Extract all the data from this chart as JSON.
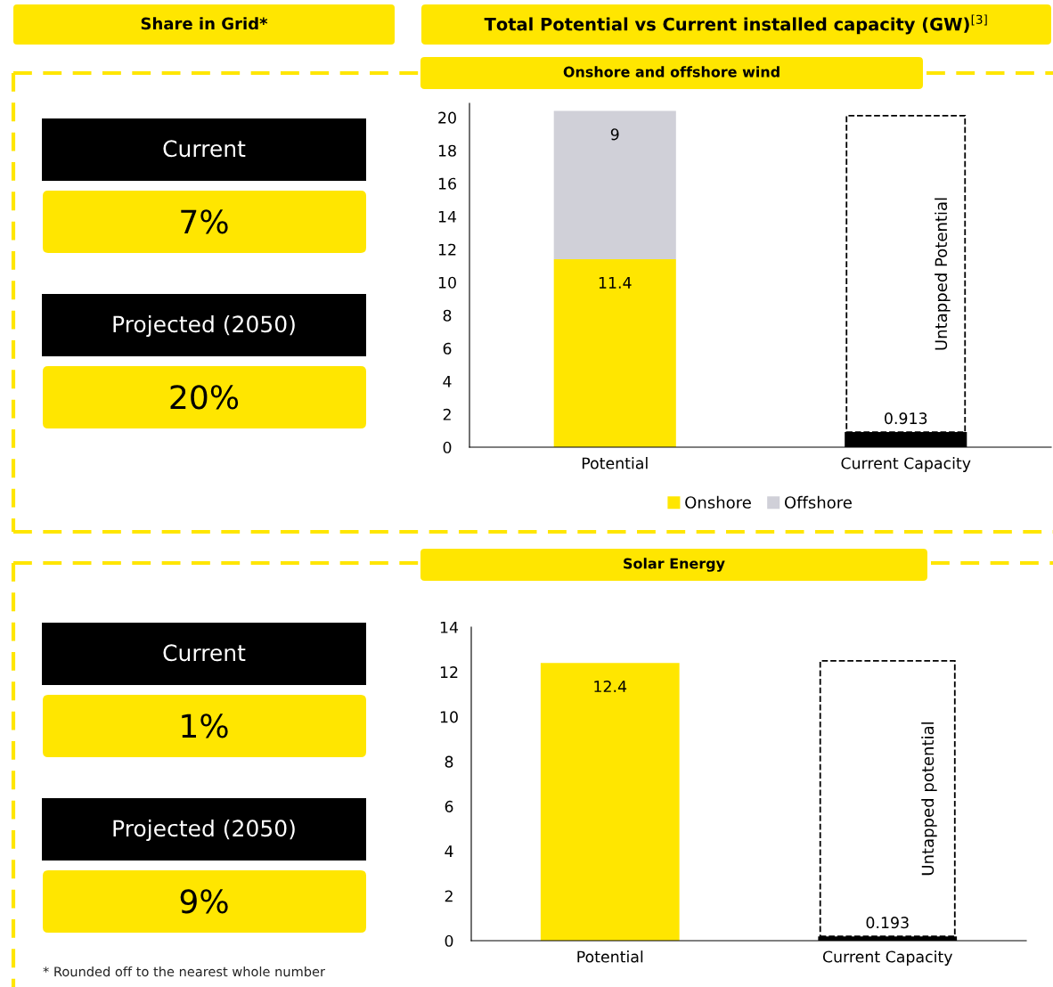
{
  "chart_data": [
    {
      "type": "other",
      "title": "Share in Grid*",
      "annotations": [
        "Current",
        "7%",
        "Projected (2050)",
        "20%"
      ]
    },
    {
      "type": "bar",
      "title": "Total Potential vs Current installed capacity (GW)$^{[3]}$",
      "subtitle": "Onshore and offshore wind",
      "categories": [
        "Potential",
        "Current Capacity"
      ],
      "stacked": true,
      "series": [
        {
          "name": "Onshore",
          "color": "#ffe600",
          "values": [
            11.4,
            null
          ],
          "value_labels": [
            "11.4",
            null
          ]
        },
        {
          "name": "Offshore",
          "color": "#d0d0d8",
          "values": [
            9,
            null
          ],
          "value_labels": [
            "9",
            null
          ]
        },
        {
          "color": "#000000",
          "values": [
            null,
            0.913
          ],
          "value_labels": [
            null,
            "0.913"
          ]
        },
        {
          "name": "Untapped Potential",
          "color": "#000000",
          "line_style": "dashed",
          "values": [
            null,
            19.2
          ]
        }
      ],
      "ylim": [
        0,
        20.86
      ],
      "yticks": [
        0,
        2,
        4,
        6,
        8,
        10,
        12,
        14,
        16,
        18,
        20
      ],
      "grid": false,
      "legend": "bottom"
    },
    {
      "type": "other",
      "annotations": [
        "Current",
        "1%",
        "Projected (2050)",
        "9%",
        "* Rounded off to the nearest whole number"
      ]
    },
    {
      "type": "bar",
      "title": "Solar Energy",
      "categories": [
        "Potential",
        "Current Capacity"
      ],
      "stacked": true,
      "series": [
        {
          "color": "#ffe600",
          "values": [
            12.4,
            null
          ],
          "value_labels": [
            "12.4",
            null
          ]
        },
        {
          "color": "#000000",
          "values": [
            null,
            0.193
          ],
          "value_labels": [
            null,
            "0.193"
          ]
        },
        {
          "name": "Untapped potential",
          "color": "#000000",
          "line_style": "dashed",
          "values": [
            null,
            12.3
          ]
        }
      ],
      "ylim": [
        0,
        14
      ],
      "yticks": [
        0,
        2,
        4,
        6,
        8,
        10,
        12,
        14
      ],
      "grid": false,
      "legend": false
    }
  ]
}
